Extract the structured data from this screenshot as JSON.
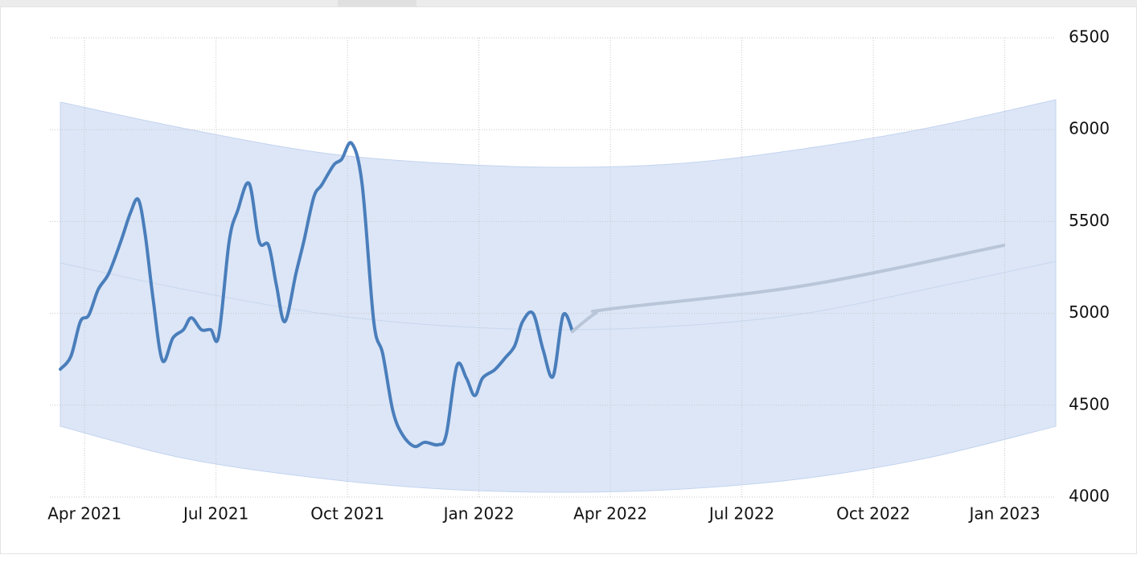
{
  "chart_data": {
    "type": "line",
    "xlim": [
      2021.184,
      2023.097
    ],
    "ylim": [
      4000,
      6500
    ],
    "xticks": [
      {
        "value": 2021.25,
        "label": "Apr 2021"
      },
      {
        "value": 2021.5,
        "label": "Jul 2021"
      },
      {
        "value": 2021.75,
        "label": "Oct 2021"
      },
      {
        "value": 2022.0,
        "label": "Jan 2022"
      },
      {
        "value": 2022.25,
        "label": "Apr 2022"
      },
      {
        "value": 2022.5,
        "label": "Jul 2022"
      },
      {
        "value": 2022.75,
        "label": "Oct 2022"
      },
      {
        "value": 2023.0,
        "label": "Jan 2023"
      }
    ],
    "yticks": [
      4000,
      4500,
      5000,
      5500,
      6000,
      6500
    ],
    "grid": true,
    "band": {
      "color": "#dce6f7",
      "center_color": "#c9d6ec",
      "x": [
        2021.204,
        2021.441,
        2021.701,
        2021.93,
        2022.16,
        2022.389,
        2022.618,
        2022.848,
        2023.097
      ],
      "upper": [
        6150,
        6006,
        5874,
        5817,
        5795,
        5817,
        5896,
        6006,
        6163
      ],
      "lower": [
        4385,
        4210,
        4101,
        4044,
        4026,
        4044,
        4101,
        4210,
        4385
      ],
      "center": [
        5274,
        5130,
        4999,
        4933,
        4911,
        4933,
        4999,
        5130,
        5283
      ]
    },
    "series": [
      {
        "color": "#4a7ebb",
        "x": [
          2021.204,
          2021.224,
          2021.242,
          2021.258,
          2021.276,
          2021.296,
          2021.319,
          2021.337,
          2021.352,
          2021.365,
          2021.38,
          2021.398,
          2021.418,
          2021.438,
          2021.453,
          2021.472,
          2021.49,
          2021.505,
          2021.525,
          2021.541,
          2021.563,
          2021.582,
          2021.6,
          2021.615,
          2021.631,
          2021.652,
          2021.667,
          2021.686,
          2021.701,
          2021.724,
          2021.739,
          2021.758,
          2021.778,
          2021.8,
          2021.817,
          2021.836,
          2021.854,
          2021.877,
          2021.897,
          2021.923,
          2021.938,
          2021.958,
          2021.976,
          2021.992,
          2022.007,
          2022.03,
          2022.05,
          2022.068,
          2022.083,
          2022.103,
          2022.122,
          2022.141,
          2022.16,
          2022.178
        ],
        "values": [
          4696,
          4766,
          4955,
          4990,
          5130,
          5217,
          5392,
          5545,
          5620,
          5436,
          5086,
          4744,
          4866,
          4911,
          4976,
          4911,
          4911,
          4876,
          5392,
          5558,
          5707,
          5392,
          5370,
          5151,
          4955,
          5217,
          5392,
          5633,
          5699,
          5808,
          5839,
          5926,
          5699,
          4955,
          4780,
          4473,
          4342,
          4276,
          4298,
          4285,
          4342,
          4714,
          4648,
          4552,
          4648,
          4693,
          4758,
          4823,
          4955,
          4999,
          4802,
          4657,
          4990,
          4902
        ]
      },
      {
        "color": "#b9c5d8",
        "x": [
          2022.178,
          2022.221,
          2022.252,
          2022.619,
          2022.998
        ],
        "values": [
          4902,
          4999,
          5025,
          5151,
          5370
        ]
      }
    ]
  }
}
